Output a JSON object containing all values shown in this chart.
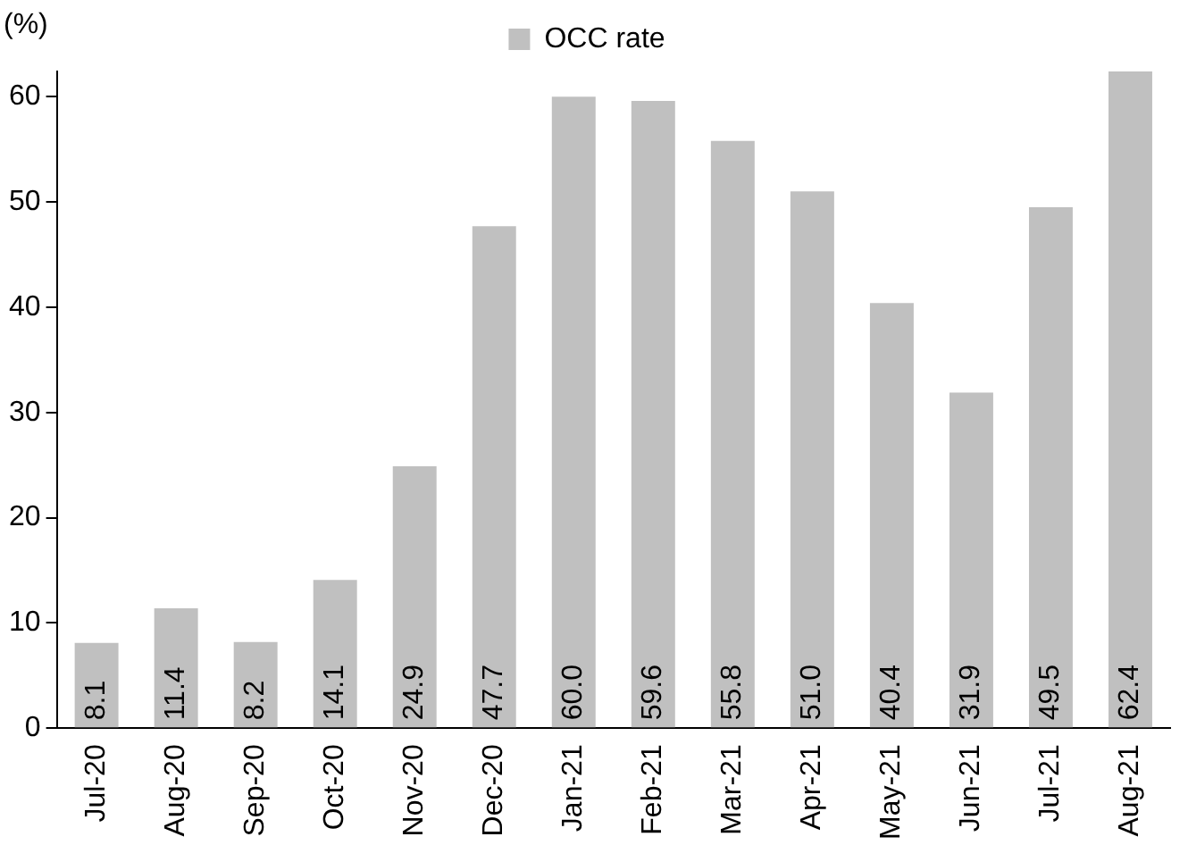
{
  "chart_data": {
    "type": "bar",
    "ylabel": "(%)",
    "categories": [
      "Jul-20",
      "Aug-20",
      "Sep-20",
      "Oct-20",
      "Nov-20",
      "Dec-20",
      "Jan-21",
      "Feb-21",
      "Mar-21",
      "Apr-21",
      "May-21",
      "Jun-21",
      "Jul-21",
      "Aug-21"
    ],
    "series": [
      {
        "name": "OCC rate",
        "color": "#c0c0c0",
        "values": [
          8.1,
          11.4,
          8.2,
          14.1,
          24.9,
          47.7,
          60.0,
          59.6,
          55.8,
          51.0,
          40.4,
          31.9,
          49.5,
          62.4
        ],
        "value_labels": [
          "8.1",
          "11.4",
          "8.2",
          "14.1",
          "24.9",
          "47.7",
          "60.0",
          "59.6",
          "55.8",
          "51.0",
          "40.4",
          "31.9",
          "49.5",
          "62.4"
        ]
      }
    ],
    "ylim": [
      0,
      62.4
    ],
    "yticks": [
      0,
      10,
      20,
      30,
      40,
      50,
      60
    ],
    "grid": false,
    "legend": "top"
  }
}
